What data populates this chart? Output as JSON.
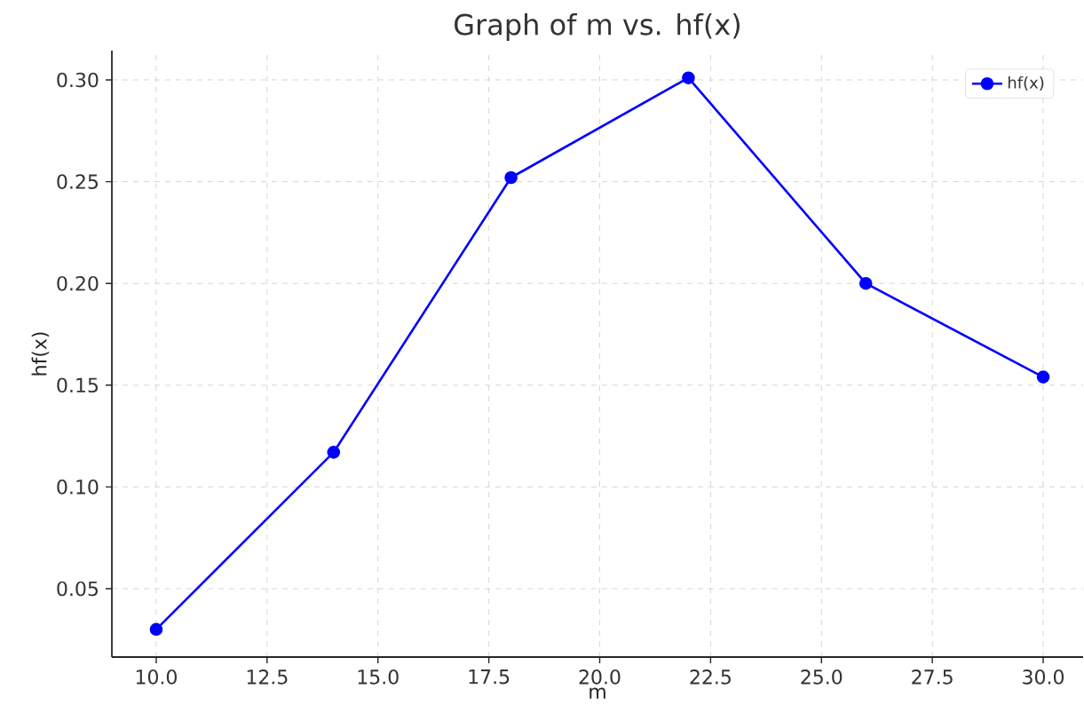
{
  "chart_data": {
    "type": "line",
    "title": "Graph of m vs. hf(x)",
    "xlabel": "m",
    "ylabel": "hf(x)",
    "x": [
      10,
      14,
      18,
      22,
      26,
      30
    ],
    "series": [
      {
        "name": "hf(x)",
        "color": "#0000ff",
        "values": [
          0.03,
          0.117,
          0.252,
          0.301,
          0.2,
          0.154
        ]
      }
    ],
    "xlim": [
      9.0,
      30.9
    ],
    "ylim": [
      0.0164,
      0.3144
    ],
    "xticks": [
      {
        "value": 10,
        "label": "10.0"
      },
      {
        "value": 12.5,
        "label": "12.5"
      },
      {
        "value": 15,
        "label": "15.0"
      },
      {
        "value": 17.5,
        "label": "17.5"
      },
      {
        "value": 20,
        "label": "20.0"
      },
      {
        "value": 22.5,
        "label": "22.5"
      },
      {
        "value": 25,
        "label": "25.0"
      },
      {
        "value": 27.5,
        "label": "27.5"
      },
      {
        "value": 30,
        "label": "30.0"
      }
    ],
    "yticks": [
      {
        "value": 0.05,
        "label": "0.05"
      },
      {
        "value": 0.1,
        "label": "0.10"
      },
      {
        "value": 0.15,
        "label": "0.15"
      },
      {
        "value": 0.2,
        "label": "0.20"
      },
      {
        "value": 0.25,
        "label": "0.25"
      },
      {
        "value": 0.3,
        "label": "0.30"
      }
    ],
    "grid": true,
    "legend": "top right",
    "marker": "circle",
    "line_style": "solid"
  }
}
